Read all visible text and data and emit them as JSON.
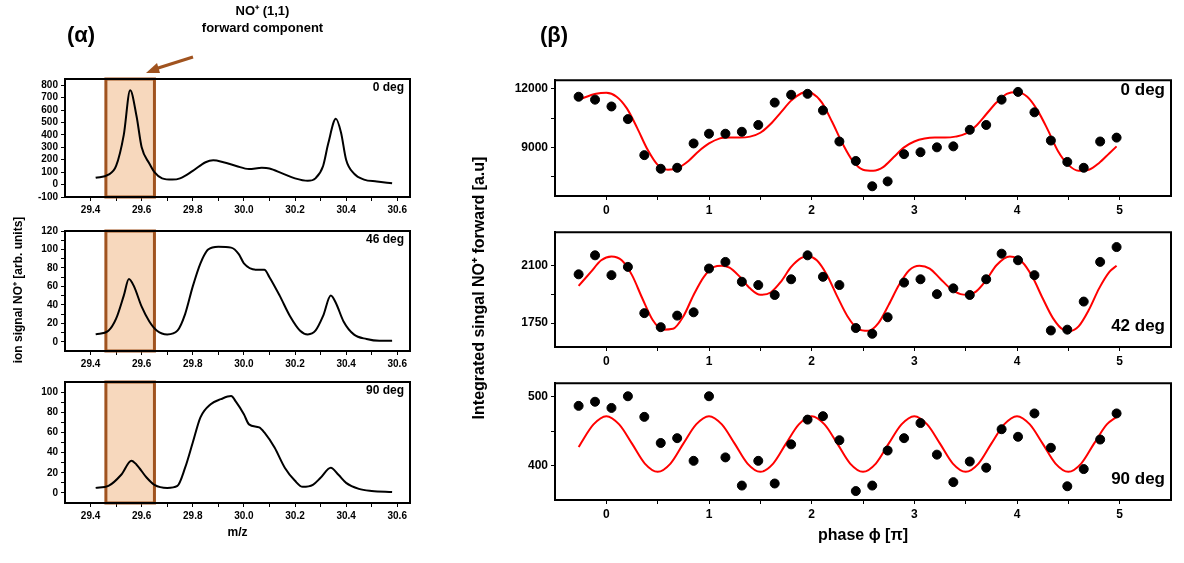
{
  "chart_data": [
    {
      "type": "line",
      "title": "(α)",
      "xlim": [
        29.3,
        30.65
      ],
      "xticks": [
        29.4,
        {
          "value": 29.5,
          "label": null
        },
        29.6,
        {
          "value": 29.7,
          "label": null
        },
        29.8,
        {
          "value": 29.9,
          "label": null
        },
        {
          "value": 30,
          "label": "30.0"
        },
        {
          "value": 30.1,
          "label": null
        },
        30.2,
        {
          "value": 30.3,
          "label": null
        },
        30.4,
        {
          "value": 30.5,
          "label": null
        },
        30.6
      ],
      "ylim": [
        -100,
        850
      ],
      "yticks": [
        -100,
        0,
        100,
        200,
        300,
        400,
        500,
        600,
        700,
        800
      ],
      "annotations": [
        "0 deg",
        "NO⁺ (1,1)\nforward component"
      ],
      "bands": [
        {
          "axis": "x",
          "from": 29.46,
          "to": 29.65,
          "color": "#f7d8bd"
        }
      ],
      "series": [
        {
          "color": "#000000",
          "x": [
            29.42,
            29.47,
            29.5,
            29.53,
            29.555,
            29.58,
            29.6,
            29.63,
            29.65,
            29.68,
            29.72,
            29.75,
            29.8,
            29.85,
            29.88,
            29.92,
            29.97,
            30.02,
            30.07,
            30.1,
            30.15,
            30.2,
            30.25,
            30.28,
            30.31,
            30.33,
            30.36,
            30.38,
            30.4,
            30.43,
            30.47,
            30.52,
            30.58
          ],
          "values": [
            55,
            80,
            150,
            400,
            760,
            550,
            300,
            170,
            100,
            50,
            40,
            50,
            110,
            180,
            195,
            180,
            150,
            125,
            135,
            130,
            90,
            50,
            30,
            50,
            150,
            330,
            530,
            420,
            200,
            90,
            40,
            25,
            10
          ]
        }
      ]
    },
    {
      "type": "line",
      "ylabel": "ion signal NO⁺ [arb. units]",
      "xlim": [
        29.3,
        30.65
      ],
      "xticks": [
        29.4,
        {
          "value": 29.5,
          "label": null
        },
        29.6,
        {
          "value": 29.7,
          "label": null
        },
        29.8,
        {
          "value": 29.9,
          "label": null
        },
        {
          "value": 30,
          "label": "30.0"
        },
        {
          "value": 30.1,
          "label": null
        },
        30.2,
        {
          "value": 30.3,
          "label": null
        },
        30.4,
        {
          "value": 30.5,
          "label": null
        },
        30.6
      ],
      "ylim": [
        -10,
        120
      ],
      "yticks": [
        0,
        {
          "value": 10,
          "label": null
        },
        20,
        {
          "value": 30,
          "label": null
        },
        40,
        {
          "value": 50,
          "label": null
        },
        60,
        {
          "value": 70,
          "label": null
        },
        80,
        {
          "value": 90,
          "label": null
        },
        100,
        {
          "value": 110,
          "label": null
        },
        120
      ],
      "annotations": [
        "46 deg"
      ],
      "bands": [
        {
          "axis": "x",
          "from": 29.46,
          "to": 29.65,
          "color": "#f7d8bd"
        }
      ],
      "series": [
        {
          "color": "#000000",
          "x": [
            29.42,
            29.47,
            29.5,
            29.53,
            29.55,
            29.57,
            29.6,
            29.63,
            29.66,
            29.7,
            29.74,
            29.77,
            29.8,
            29.83,
            29.86,
            29.9,
            29.95,
            29.98,
            30.0,
            30.05,
            30.08,
            30.1,
            30.14,
            30.18,
            30.22,
            30.25,
            30.28,
            30.31,
            30.34,
            30.36,
            30.39,
            30.43,
            30.48,
            30.53,
            30.58
          ],
          "values": [
            8,
            12,
            25,
            50,
            68,
            60,
            38,
            22,
            12,
            8,
            12,
            30,
            60,
            85,
            100,
            103,
            102,
            95,
            85,
            78,
            78,
            70,
            50,
            28,
            12,
            8,
            12,
            28,
            50,
            42,
            22,
            8,
            3,
            1,
            1
          ]
        }
      ]
    },
    {
      "type": "line",
      "xlabel": "m/z",
      "xlim": [
        29.3,
        30.65
      ],
      "xticks": [
        29.4,
        {
          "value": 29.5,
          "label": null
        },
        29.6,
        {
          "value": 29.7,
          "label": null
        },
        29.8,
        {
          "value": 29.9,
          "label": null
        },
        {
          "value": 30,
          "label": "30.0"
        },
        {
          "value": 30.1,
          "label": null
        },
        30.2,
        {
          "value": 30.3,
          "label": null
        },
        30.4,
        {
          "value": 30.5,
          "label": null
        },
        30.6
      ],
      "ylim": [
        -10,
        110
      ],
      "yticks": [
        0,
        {
          "value": 10,
          "label": null
        },
        20,
        {
          "value": 30,
          "label": null
        },
        40,
        {
          "value": 50,
          "label": null
        },
        60,
        {
          "value": 70,
          "label": null
        },
        80,
        {
          "value": 90,
          "label": null
        },
        100
      ],
      "annotations": [
        "90 deg"
      ],
      "bands": [
        {
          "axis": "x",
          "from": 29.46,
          "to": 29.65,
          "color": "#f7d8bd"
        }
      ],
      "series": [
        {
          "color": "#000000",
          "x": [
            29.42,
            29.47,
            29.52,
            29.56,
            29.58,
            29.62,
            29.65,
            29.7,
            29.74,
            29.77,
            29.8,
            29.83,
            29.87,
            29.91,
            29.95,
            29.97,
            30.0,
            30.02,
            30.06,
            30.08,
            30.12,
            30.16,
            30.2,
            30.23,
            30.27,
            30.3,
            30.34,
            30.37,
            30.4,
            30.45,
            30.5,
            30.58
          ],
          "values": [
            5,
            7,
            18,
            32,
            28,
            15,
            8,
            5,
            7,
            25,
            50,
            75,
            88,
            93,
            96,
            90,
            78,
            68,
            65,
            60,
            45,
            25,
            12,
            6,
            8,
            15,
            25,
            18,
            10,
            4,
            2,
            1
          ]
        }
      ]
    },
    {
      "type": "scatter",
      "title": "(β)",
      "xlim": [
        -0.5,
        5.5
      ],
      "xticks": [
        0,
        {
          "value": 0.5,
          "label": null
        },
        1,
        {
          "value": 1.5,
          "label": null
        },
        2,
        {
          "value": 2.5,
          "label": null
        },
        3,
        {
          "value": 3.5,
          "label": null
        },
        4,
        {
          "value": 4.5,
          "label": null
        },
        5
      ],
      "ylim": [
        6500,
        12450
      ],
      "yticks": [
        {
          "value": 7500,
          "label": null
        },
        9000,
        {
          "value": 10500,
          "label": null
        },
        12000
      ],
      "annotations": [
        "0 deg"
      ],
      "x": [
        -0.27,
        -0.11,
        0.05,
        0.21,
        0.37,
        0.53,
        0.69,
        0.85,
        1.0,
        1.16,
        1.32,
        1.48,
        1.64,
        1.8,
        1.96,
        2.11,
        2.27,
        2.43,
        2.59,
        2.74,
        2.9,
        3.06,
        3.22,
        3.38,
        3.54,
        3.7,
        3.85,
        4.01,
        4.17,
        4.33,
        4.49,
        4.65,
        4.81,
        4.97
      ],
      "series": [
        {
          "color": "#000000",
          "marker": "circle",
          "values": [
            11600,
            11450,
            11100,
            10450,
            8600,
            7900,
            7950,
            9200,
            9700,
            9700,
            9800,
            10150,
            11300,
            11700,
            11750,
            10900,
            9300,
            8300,
            7000,
            7250,
            8650,
            8750,
            9000,
            9050,
            9900,
            10150,
            11450,
            11850,
            10800,
            9350,
            8250,
            7950,
            9300,
            9500
          ]
        },
        {
          "type": "line",
          "color": "#ff0000",
          "marker": "none",
          "x": [
            -0.27,
            -0.1,
            0,
            0.1,
            0.2,
            0.3,
            0.4,
            0.5,
            0.6,
            0.7,
            0.8,
            0.9,
            1.0,
            1.1,
            1.2,
            1.3,
            1.4,
            1.5,
            1.6,
            1.7,
            1.8,
            1.9,
            1.95,
            2.0,
            2.1,
            2.2,
            2.3,
            2.4,
            2.5,
            2.6,
            2.7,
            2.8,
            2.9,
            3.0,
            3.1,
            3.2,
            3.3,
            3.4,
            3.5,
            3.6,
            3.7,
            3.8,
            3.9,
            4.0,
            4.1,
            4.2,
            4.3,
            4.4,
            4.5,
            4.6,
            4.7,
            4.8,
            4.9,
            4.97
          ],
          "values": [
            11450,
            11750,
            11800,
            11600,
            11000,
            10000,
            8900,
            8100,
            7850,
            7950,
            8300,
            8800,
            9200,
            9450,
            9500,
            9500,
            9550,
            9750,
            10200,
            10800,
            11400,
            11780,
            11850,
            11800,
            11300,
            10300,
            9200,
            8300,
            7850,
            7800,
            8000,
            8500,
            9000,
            9300,
            9450,
            9500,
            9500,
            9550,
            9700,
            10100,
            10700,
            11300,
            11750,
            11850,
            11600,
            10900,
            9900,
            8800,
            8100,
            7800,
            7850,
            8200,
            8700,
            9050
          ]
        }
      ]
    },
    {
      "type": "scatter",
      "ylabel": "Integrated singal NO⁺ forward [a.u]",
      "xlim": [
        -0.5,
        5.5
      ],
      "xticks": [
        0,
        {
          "value": 0.5,
          "label": null
        },
        1,
        {
          "value": 1.5,
          "label": null
        },
        2,
        {
          "value": 2.5,
          "label": null
        },
        3,
        {
          "value": 3.5,
          "label": null
        },
        4,
        {
          "value": 4.5,
          "label": null
        },
        5
      ],
      "ylim": [
        1605,
        2300
      ],
      "yticks": [
        1750,
        {
          "value": 1925,
          "label": null
        },
        2100
      ],
      "annotations": [
        "42 deg"
      ],
      "x": [
        -0.27,
        -0.11,
        0.05,
        0.21,
        0.37,
        0.53,
        0.69,
        0.85,
        1.0,
        1.16,
        1.32,
        1.48,
        1.64,
        1.8,
        1.96,
        2.11,
        2.27,
        2.43,
        2.59,
        2.74,
        2.9,
        3.06,
        3.22,
        3.38,
        3.54,
        3.7,
        3.85,
        4.01,
        4.17,
        4.33,
        4.49,
        4.65,
        4.81,
        4.97
      ],
      "series": [
        {
          "color": "#000000",
          "marker": "circle",
          "values": [
            2045,
            2160,
            2040,
            2090,
            1810,
            1725,
            1795,
            1815,
            2080,
            2120,
            2000,
            1980,
            1920,
            2015,
            2160,
            2030,
            1980,
            1720,
            1685,
            1785,
            1995,
            2015,
            1925,
            1960,
            1920,
            2015,
            2170,
            2130,
            2040,
            1705,
            1710,
            1880,
            2120,
            2210
          ]
        },
        {
          "type": "line",
          "color": "#ff0000",
          "marker": "none",
          "x": [
            -0.27,
            -0.15,
            -0.05,
            0.05,
            0.15,
            0.25,
            0.35,
            0.45,
            0.55,
            0.65,
            0.75,
            0.85,
            0.95,
            1.05,
            1.12,
            1.2,
            1.3,
            1.4,
            1.5,
            1.6,
            1.7,
            1.8,
            1.9,
            1.97,
            2.05,
            2.15,
            2.25,
            2.35,
            2.45,
            2.55,
            2.65,
            2.75,
            2.85,
            2.95,
            3.05,
            3.15,
            3.25,
            3.35,
            3.45,
            3.52,
            3.6,
            3.7,
            3.8,
            3.93,
            4.05,
            4.15,
            4.25,
            4.35,
            4.45,
            4.52,
            4.6,
            4.7,
            4.8,
            4.9,
            4.97
          ],
          "values": [
            1975,
            2060,
            2130,
            2153,
            2130,
            2040,
            1900,
            1770,
            1710,
            1715,
            1790,
            1920,
            2030,
            2090,
            2097,
            2085,
            2030,
            1960,
            1921,
            1935,
            2000,
            2090,
            2145,
            2153,
            2130,
            2040,
            1910,
            1790,
            1715,
            1703,
            1750,
            1860,
            1980,
            2070,
            2097,
            2080,
            2020,
            1960,
            1925,
            1921,
            1940,
            2010,
            2100,
            2153,
            2120,
            2030,
            1900,
            1780,
            1710,
            1703,
            1730,
            1830,
            1960,
            2060,
            2097
          ]
        }
      ]
    },
    {
      "type": "scatter",
      "xlabel": "phase ϕ [π]",
      "xlim": [
        -0.5,
        5.5
      ],
      "xticks": [
        0,
        {
          "value": 0.5,
          "label": null
        },
        1,
        {
          "value": 1.5,
          "label": null
        },
        2,
        {
          "value": 2.5,
          "label": null
        },
        3,
        {
          "value": 3.5,
          "label": null
        },
        4,
        {
          "value": 4.5,
          "label": null
        },
        5
      ],
      "ylim": [
        350,
        520
      ],
      "yticks": [
        400,
        {
          "value": 450,
          "label": null
        },
        500
      ],
      "annotations": [
        "90 deg"
      ],
      "x": [
        -0.27,
        -0.11,
        0.05,
        0.21,
        0.37,
        0.53,
        0.69,
        0.85,
        1.0,
        1.16,
        1.32,
        1.48,
        1.64,
        1.8,
        1.96,
        2.11,
        2.27,
        2.43,
        2.59,
        2.74,
        2.9,
        3.06,
        3.22,
        3.38,
        3.54,
        3.7,
        3.85,
        4.01,
        4.17,
        4.33,
        4.49,
        4.65,
        4.81,
        4.97
      ],
      "series": [
        {
          "color": "#000000",
          "marker": "circle",
          "values": [
            487,
            493,
            484,
            501,
            471,
            433,
            440,
            407,
            501,
            412,
            371,
            407,
            374,
            431,
            467,
            472,
            437,
            363,
            371,
            422,
            440,
            462,
            416,
            376,
            406,
            397,
            453,
            442,
            476,
            426,
            370,
            395,
            438,
            476
          ]
        },
        {
          "type": "line",
          "color": "#ff0000",
          "marker": "none",
          "x": [
            -0.27,
            -0.25,
            -0.125,
            0,
            0.125,
            0.25,
            0.375,
            0.5,
            0.625,
            0.75,
            0.875,
            1,
            1.125,
            1.25,
            1.375,
            1.5,
            1.625,
            1.75,
            1.875,
            2,
            2.125,
            2.25,
            2.375,
            2.5,
            2.625,
            2.75,
            2.875,
            3,
            3.125,
            3.25,
            3.375,
            3.5,
            3.625,
            3.75,
            3.875,
            4,
            4.125,
            4.25,
            4.375,
            4.5,
            4.625,
            4.75,
            4.875,
            4.97
          ],
          "values": [
            427,
            432,
            460,
            472,
            460,
            432,
            403,
            391,
            403,
            432,
            460,
            472,
            460,
            432,
            403,
            391,
            403,
            432,
            460,
            472,
            460,
            432,
            403,
            391,
            403,
            432,
            460,
            472,
            460,
            432,
            403,
            391,
            403,
            432,
            460,
            472,
            460,
            432,
            403,
            391,
            403,
            432,
            460,
            471
          ]
        }
      ]
    }
  ]
}
